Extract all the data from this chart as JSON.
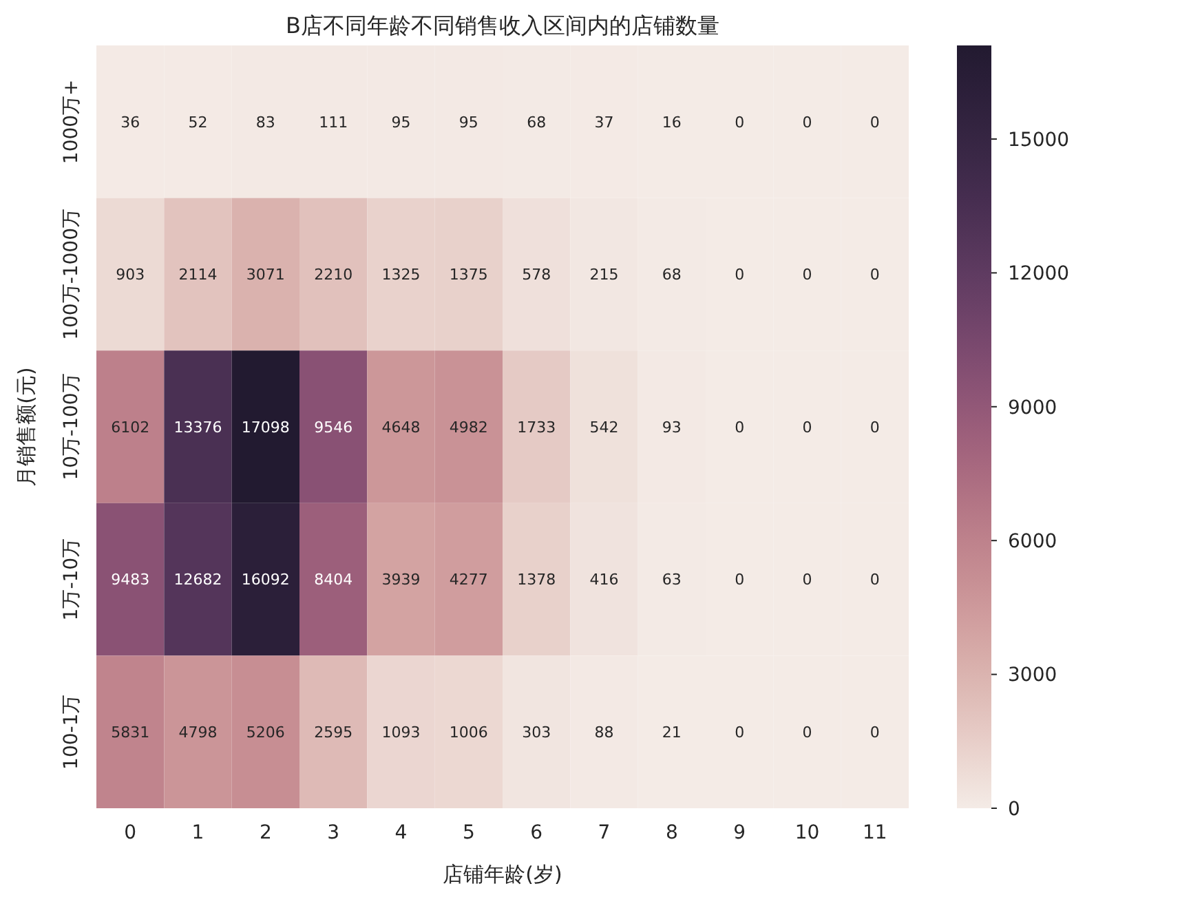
{
  "chart_data": {
    "type": "heatmap",
    "title": "B店不同年龄不同销售收入区间内的店铺数量",
    "xlabel": "店铺年龄(岁)",
    "ylabel": "月销售额(元)",
    "categories": [
      "0",
      "1",
      "2",
      "3",
      "4",
      "5",
      "6",
      "7",
      "8",
      "9",
      "10",
      "11"
    ],
    "y_categories": [
      "1000万+",
      "100万-1000万",
      "10万-100万",
      "1万-10万",
      "100-1万"
    ],
    "cells": [
      [
        36,
        52,
        83,
        111,
        95,
        95,
        68,
        37,
        16,
        0,
        0,
        0
      ],
      [
        903,
        2114,
        3071,
        2210,
        1325,
        1375,
        578,
        215,
        68,
        0,
        0,
        0
      ],
      [
        6102,
        13376,
        17098,
        9546,
        4648,
        4982,
        1733,
        542,
        93,
        0,
        0,
        0
      ],
      [
        9483,
        12682,
        16092,
        8404,
        3939,
        4277,
        1378,
        416,
        63,
        0,
        0,
        0
      ],
      [
        5831,
        4798,
        5206,
        2595,
        1093,
        1006,
        303,
        88,
        21,
        0,
        0,
        0
      ]
    ],
    "data_labels": true,
    "clim": [
      0,
      17098
    ],
    "cticks": [
      0,
      3000,
      6000,
      9000,
      12000,
      15000
    ]
  }
}
